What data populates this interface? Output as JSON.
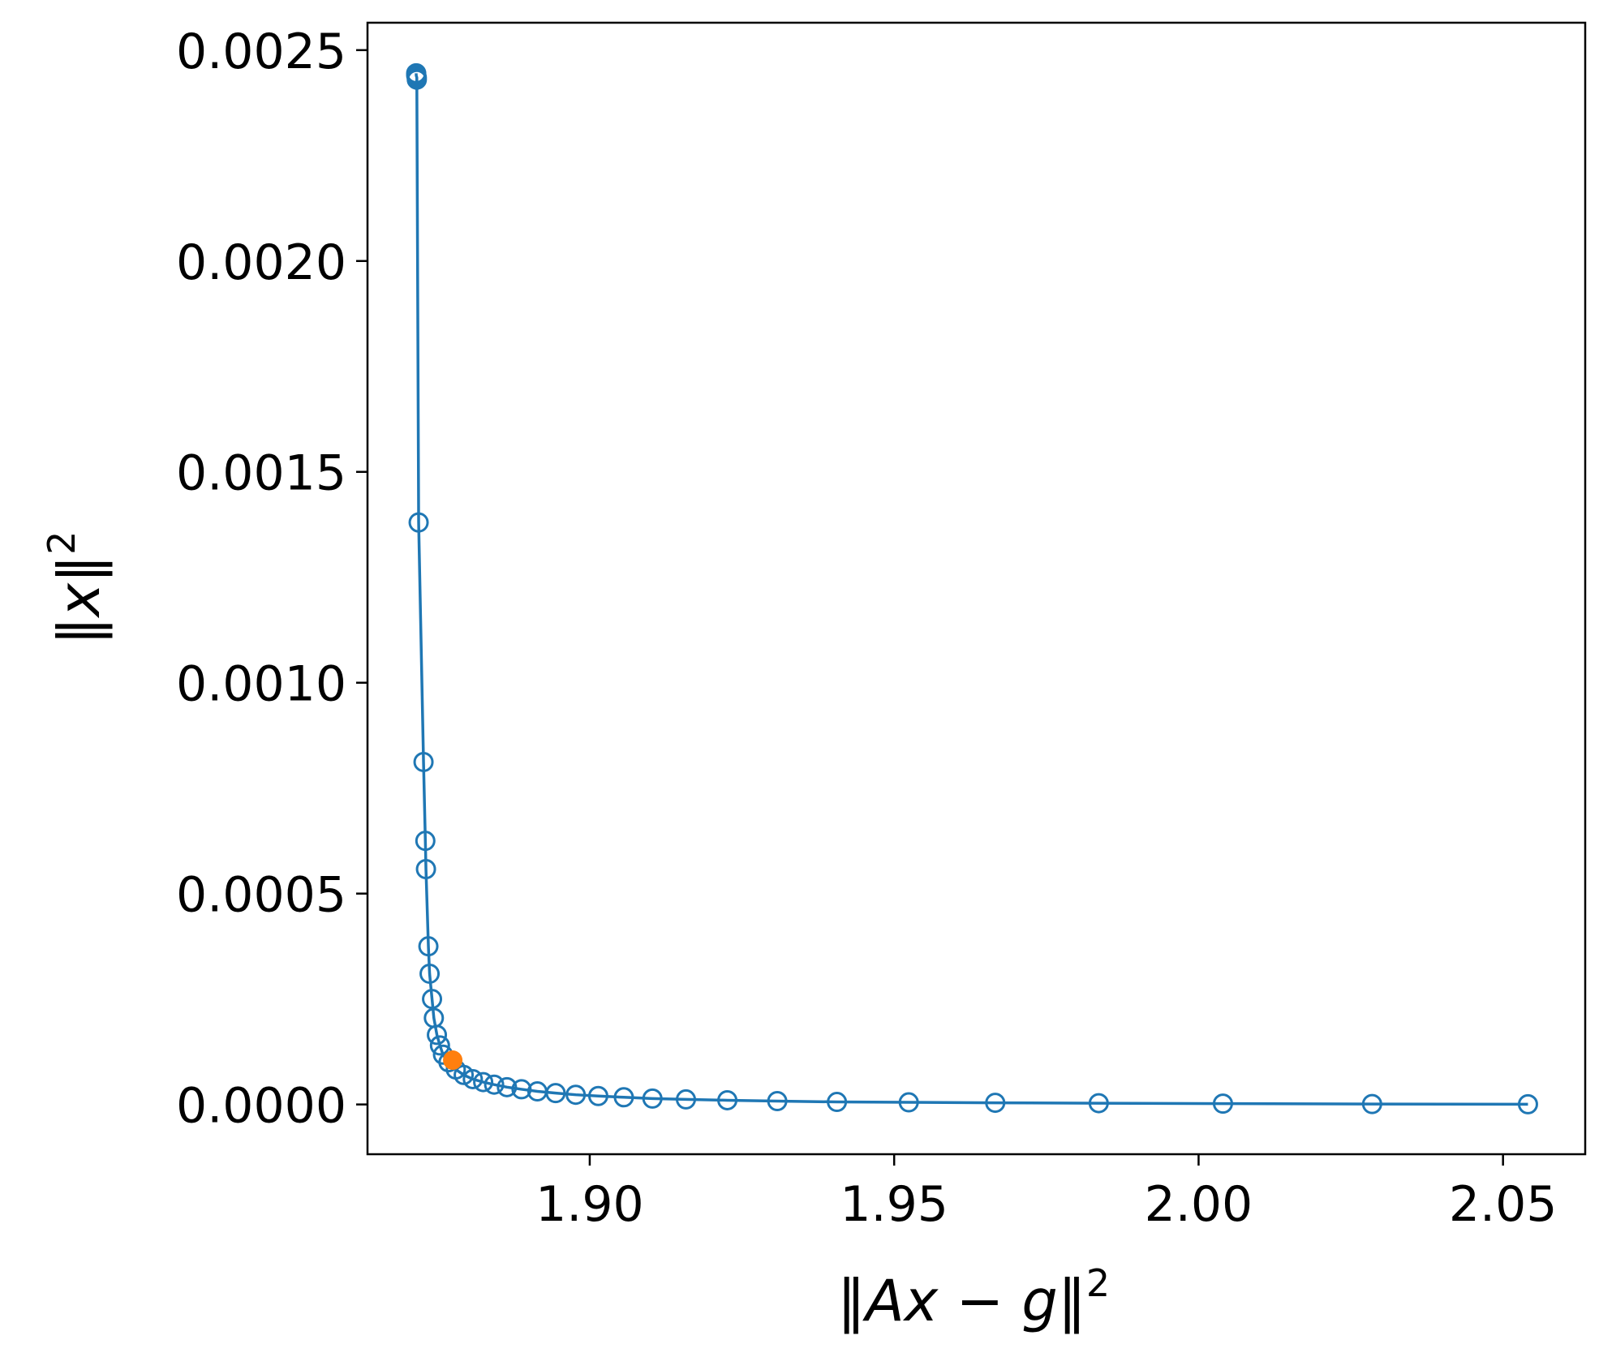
{
  "chart_data": {
    "type": "line",
    "title": "",
    "xlabel": {
      "pre": "‖",
      "var1": "Ax",
      "op": " − ",
      "var2": "g",
      "post": "‖",
      "exp": "2"
    },
    "ylabel": {
      "pre": "‖",
      "var1": "x",
      "post": "‖",
      "exp": "2"
    },
    "xlim": [
      1.8635,
      2.0635
    ],
    "ylim": [
      -0.000118,
      0.002565
    ],
    "x_ticks": [
      {
        "value": 1.9,
        "label": "1.90"
      },
      {
        "value": 1.95,
        "label": "1.95"
      },
      {
        "value": 2.0,
        "label": "2.00"
      },
      {
        "value": 2.05,
        "label": "2.05"
      }
    ],
    "y_ticks": [
      {
        "value": 0.0,
        "label": "0.0000"
      },
      {
        "value": 0.0005,
        "label": "0.0005"
      },
      {
        "value": 0.001,
        "label": "0.0010"
      },
      {
        "value": 0.0015,
        "label": "0.0015"
      },
      {
        "value": 0.002,
        "label": "0.0020"
      },
      {
        "value": 0.0025,
        "label": "0.0025"
      }
    ],
    "grid": false,
    "legend": "none",
    "series": [
      {
        "color": "#1f77b4",
        "marker": "open-circle",
        "line": true,
        "x": [
          1.8715,
          1.8715,
          1.8716,
          1.8716,
          1.8719,
          1.8727,
          1.873,
          1.8731,
          1.8735,
          1.8737,
          1.8741,
          1.8744,
          1.8749,
          1.8754,
          1.8759,
          1.8768,
          1.878,
          1.8793,
          1.8808,
          1.8825,
          1.8843,
          1.8864,
          1.8888,
          1.8914,
          1.8944,
          1.8977,
          1.9014,
          1.9056,
          1.9103,
          1.9158,
          1.9226,
          1.9308,
          1.9406,
          1.9524,
          1.9666,
          1.9836,
          2.004,
          2.0285,
          2.0541
        ],
        "y": [
          0.002445,
          0.00244,
          0.002435,
          0.00243,
          0.00138,
          0.000812,
          0.000625,
          0.000558,
          0.000375,
          0.00031,
          0.00025,
          0.000205,
          0.000165,
          0.00014,
          0.000118,
          0.0001,
          8.3e-05,
          7e-05,
          6e-05,
          5.3e-05,
          4.7e-05,
          4.1e-05,
          3.6e-05,
          3.1e-05,
          2.7e-05,
          2.3e-05,
          2e-05,
          1.7e-05,
          1.4e-05,
          1.2e-05,
          1e-05,
          8e-06,
          6e-06,
          5e-06,
          4e-06,
          3e-06,
          2e-06,
          1e-06,
          5e-07
        ]
      },
      {
        "color": "#ff7f0e",
        "marker": "filled-circle",
        "line": false,
        "x": [
          1.8775
        ],
        "y": [
          0.000105
        ]
      }
    ]
  }
}
